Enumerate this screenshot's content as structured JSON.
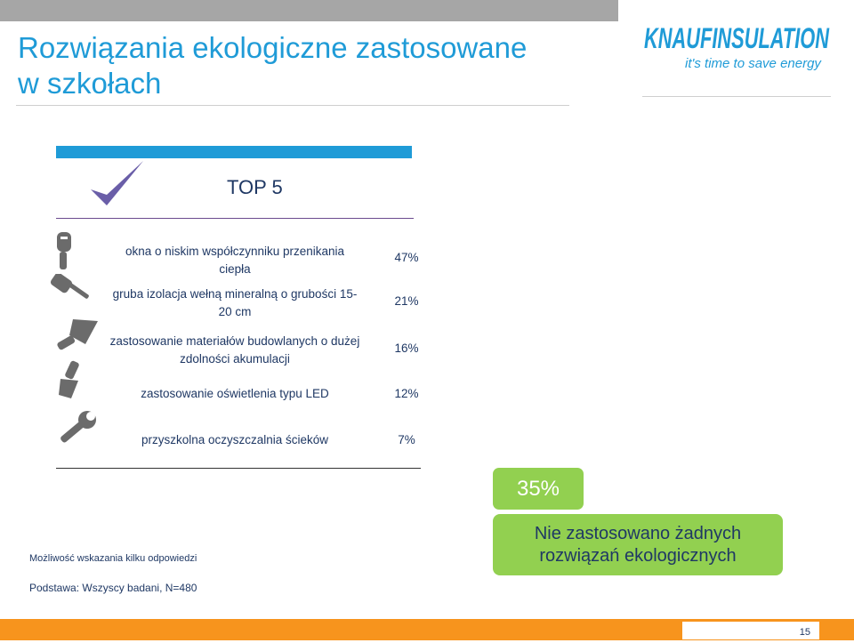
{
  "title": {
    "line1": "Rozwiązania ekologiczne zastosowane",
    "line2": "w szkołach"
  },
  "logo": {
    "brand": "KNAUFINSULATION",
    "tagline": "it's time to save energy"
  },
  "top_heading": "TOP 5",
  "items": [
    {
      "label_lines": [
        "okna o niskim współczynniku przenikania",
        "ciepła"
      ],
      "value": "47%",
      "icon": "screwdriver-icon"
    },
    {
      "label_lines": [
        "gruba izolacja wełną mineralną o grubości 15-",
        "20 cm"
      ],
      "value": "21%",
      "icon": "paint-roller-icon"
    },
    {
      "label_lines": [
        "zastosowanie materiałów budowlanych o dużej",
        "zdolności akumulacji"
      ],
      "value": "16%",
      "icon": "trowel-icon"
    },
    {
      "label_lines": [
        "zastosowanie oświetlenia typu LED"
      ],
      "value": "12%",
      "icon": "paintbrush-icon"
    },
    {
      "label_lines": [
        "przyszkolna oczyszczalnia ścieków"
      ],
      "value": "7%",
      "icon": "wrench-icon"
    }
  ],
  "highlight": {
    "value": "35%",
    "text_lines": [
      "Nie zastosowano żadnych",
      "rozwiązań ekologicznych"
    ]
  },
  "footnotes": {
    "multiple": "Możliwość wskazania kilku odpowiedzi",
    "base": "Podstawa: Wszyscy badani, N=480"
  },
  "page_number": "15",
  "colors": {
    "title": "#1f9bd7",
    "accent_green": "#92d050",
    "accent_orange": "#f7941d",
    "text": "#1f3864"
  }
}
